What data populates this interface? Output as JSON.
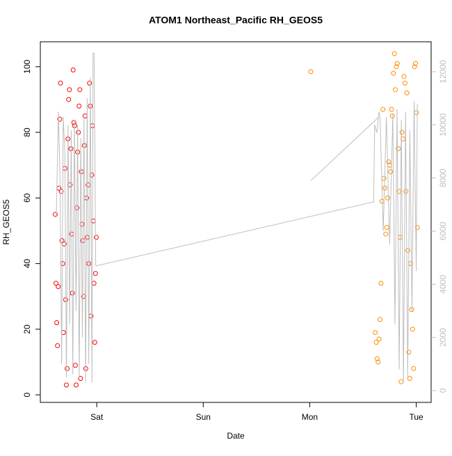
{
  "chart_data": {
    "type": "scatter",
    "title": "ATOM1 Northeast_Pacific RH_GEOS5",
    "xlabel": "Date",
    "ylabel": "RH_GEOS5",
    "xlim": [
      -0.53,
      3.14
    ],
    "xticks": [
      {
        "value": 0,
        "label": "Sat"
      },
      {
        "value": 1,
        "label": "Sun"
      },
      {
        "value": 2,
        "label": "Mon"
      },
      {
        "value": 3,
        "label": "Tue"
      }
    ],
    "ylim": [
      -2.3,
      107.6
    ],
    "yticks": [
      0,
      20,
      40,
      60,
      80,
      100
    ],
    "y2lim": [
      -445,
      13127
    ],
    "y2ticks": [
      0,
      2000,
      4000,
      6000,
      8000,
      10000,
      12000
    ],
    "y2color": "#bebebe",
    "series": [
      {
        "color": "#ff0000",
        "x": [
          -0.39,
          -0.383,
          -0.376,
          -0.369,
          -0.362,
          -0.355,
          -0.348,
          -0.341,
          -0.334,
          -0.327,
          -0.32,
          -0.313,
          -0.306,
          -0.299,
          -0.292,
          -0.285,
          -0.278,
          -0.271,
          -0.264,
          -0.257,
          -0.25,
          -0.243,
          -0.236,
          -0.229,
          -0.222,
          -0.215,
          -0.208,
          -0.201,
          -0.194,
          -0.187,
          -0.18,
          -0.173,
          -0.166,
          -0.159,
          -0.152,
          -0.145,
          -0.138,
          -0.131,
          -0.124,
          -0.117,
          -0.11,
          -0.103,
          -0.096,
          -0.089,
          -0.082,
          -0.075,
          -0.068,
          -0.061,
          -0.054,
          -0.047,
          -0.04,
          -0.033,
          -0.026,
          -0.019,
          -0.012,
          -0.005
        ],
        "values": [
          55,
          34,
          22,
          15,
          33,
          63,
          84,
          95,
          62,
          47,
          40,
          19,
          46,
          69,
          29,
          3,
          8,
          78,
          90,
          93,
          64,
          75,
          49,
          31,
          99,
          83,
          82,
          9,
          3,
          57,
          74,
          80,
          88,
          93,
          5,
          68,
          52,
          47,
          30,
          76,
          85,
          8,
          60,
          48,
          64,
          40,
          95,
          88,
          24,
          67,
          82,
          53,
          34,
          16,
          37,
          48
        ]
      },
      {
        "color": "#ff8c00",
        "x": [
          2.01,
          2.615,
          2.624,
          2.633,
          2.642,
          2.651,
          2.66,
          2.669,
          2.678,
          2.687,
          2.696,
          2.705,
          2.714,
          2.723,
          2.732,
          2.741,
          2.75,
          2.759,
          2.768,
          2.777,
          2.786,
          2.795,
          2.804,
          2.813,
          2.822,
          2.831,
          2.84,
          2.849,
          2.858,
          2.867,
          2.876,
          2.885,
          2.894,
          2.903,
          2.912,
          2.921,
          2.93,
          2.939,
          2.948,
          2.957,
          2.966,
          2.975,
          2.984,
          2.993,
          3.002,
          3.011
        ],
        "values": [
          98.5,
          19,
          16,
          11,
          10,
          17,
          23,
          34,
          59,
          87,
          66,
          63,
          49,
          51,
          60,
          71,
          70,
          68,
          87,
          85,
          98,
          104,
          93,
          100,
          101,
          75,
          62,
          48,
          4,
          80,
          78,
          97,
          95,
          62,
          92,
          44,
          13,
          5,
          40,
          26,
          20,
          8,
          100,
          101,
          86,
          51
        ]
      },
      {
        "type": "line",
        "axis": "y2",
        "color": "#bebebe",
        "x": [
          -0.38,
          -0.36,
          -0.345,
          -0.33,
          -0.315,
          -0.3,
          -0.285,
          -0.27,
          -0.255,
          -0.24,
          -0.225,
          -0.21,
          -0.195,
          -0.18,
          -0.165,
          -0.15,
          -0.135,
          -0.12,
          -0.105,
          -0.09,
          -0.075,
          -0.06,
          -0.045,
          -0.035,
          -0.025,
          -0.01,
          0.0,
          2.6,
          2.61,
          2.63,
          2.65,
          2.66,
          2.69,
          2.72,
          2.75,
          2.78,
          2.8,
          2.82,
          2.84,
          2.86,
          2.88,
          2.9,
          2.92,
          2.94,
          2.96,
          2.98,
          3.0,
          3.01,
          null,
          2.01,
          2.65
        ],
        "values": [
          6600,
          10500,
          8000,
          1000,
          10300,
          9000,
          500,
          10000,
          2500,
          9800,
          600,
          10200,
          3000,
          10000,
          500,
          9500,
          2000,
          10300,
          300,
          11000,
          1000,
          11800,
          300,
          12700,
          12700,
          4700,
          4700,
          7100,
          10000,
          9700,
          10500,
          10300,
          6000,
          10300,
          5500,
          10400,
          2500,
          10600,
          800,
          10200,
          300,
          10500,
          500,
          9800,
          3000,
          10900,
          4500,
          10800,
          null,
          7900,
          10300
        ]
      }
    ]
  }
}
